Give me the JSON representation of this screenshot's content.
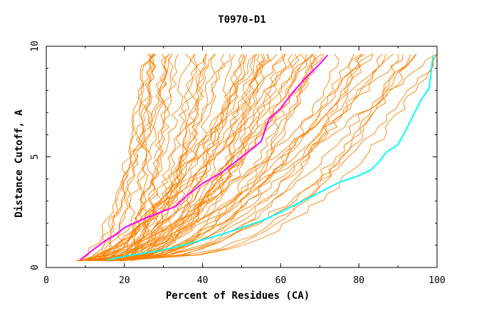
{
  "chart_data": {
    "type": "line",
    "title": "T0970-D1",
    "xlabel": "Percent of Residues (CA)",
    "ylabel": "Distance Cutoff, A",
    "xlim": [
      0,
      100
    ],
    "ylim": [
      0,
      10
    ],
    "x_ticks": [
      0,
      20,
      40,
      60,
      80,
      100
    ],
    "y_ticks": [
      0,
      5,
      10
    ],
    "grid": false,
    "colors": {
      "background_series": "#ff8000",
      "highlight_magenta": "#ff00ff",
      "highlight_cyan": "#00ffff",
      "axis": "#000000"
    },
    "background_series_count": 70,
    "highlight_series": [
      {
        "color": "#ff00ff",
        "x": [
          8.7,
          12,
          15,
          18,
          20,
          25,
          30,
          33,
          36,
          40,
          45,
          50,
          53,
          55,
          57,
          60,
          63,
          66,
          70,
          72
        ],
        "y": [
          0.35,
          0.8,
          1.2,
          1.5,
          1.8,
          2.2,
          2.55,
          2.75,
          3.25,
          3.8,
          4.3,
          5.0,
          5.4,
          5.7,
          6.7,
          7.2,
          7.9,
          8.5,
          9.2,
          9.6
        ]
      },
      {
        "color": "#00ffff",
        "x": [
          15.7,
          20,
          25,
          30,
          35,
          40,
          45,
          50,
          55,
          60,
          65,
          70,
          75,
          80,
          83,
          85,
          87,
          90,
          92,
          94,
          96,
          98,
          99
        ],
        "y": [
          0.35,
          0.5,
          0.65,
          0.8,
          1.0,
          1.25,
          1.5,
          1.8,
          2.1,
          2.5,
          2.95,
          3.4,
          3.85,
          4.15,
          4.4,
          4.75,
          5.2,
          5.55,
          6.2,
          6.9,
          7.6,
          8.1,
          9.6
        ]
      }
    ]
  }
}
